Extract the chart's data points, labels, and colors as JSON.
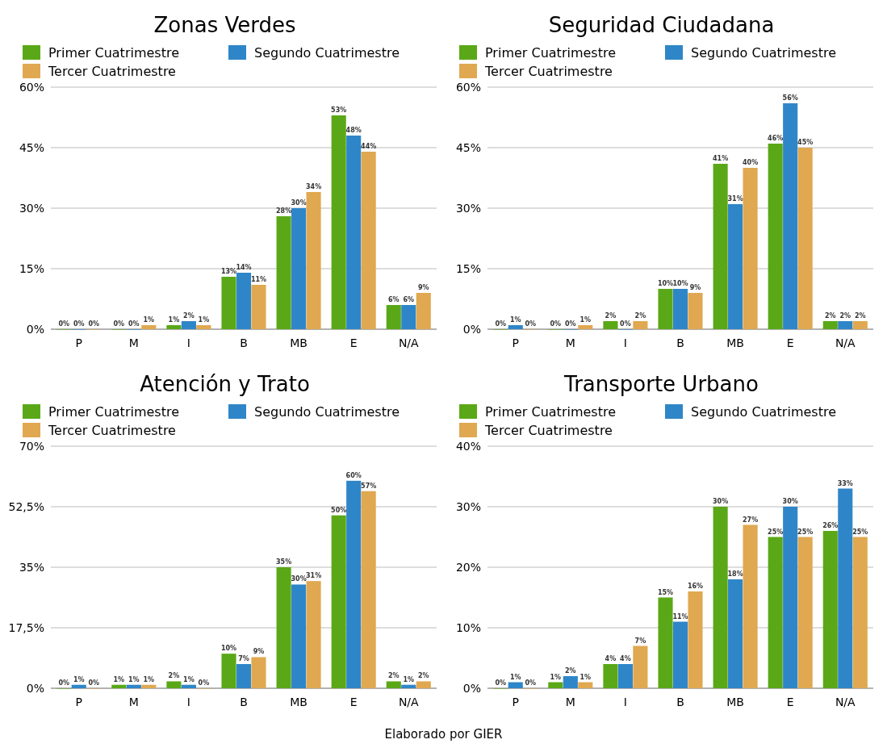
{
  "chart_data": [
    {
      "type": "bar",
      "title": "Zonas Verdes",
      "categories": [
        "P",
        "M",
        "I",
        "B",
        "MB",
        "E",
        "N/A"
      ],
      "ylim": [
        0,
        60
      ],
      "yticks": [
        {
          "value": 0,
          "label": "0%"
        },
        {
          "value": 15,
          "label": "15%"
        },
        {
          "value": 30,
          "label": "30%"
        },
        {
          "value": 45,
          "label": "45%"
        },
        {
          "value": 60,
          "label": "60%"
        }
      ],
      "grid": "y",
      "legend": "top",
      "series": [
        {
          "name": "Primer Cuatrimestre",
          "color": "#5aa817",
          "values": [
            0,
            0,
            1,
            13,
            28,
            53,
            6
          ],
          "value_labels": [
            "0%",
            "0%",
            "1%",
            "13%",
            "28%",
            "53%",
            "6%"
          ]
        },
        {
          "name": "Segundo Cuatrimestre",
          "color": "#2e86c8",
          "values": [
            0,
            0,
            2,
            14,
            30,
            48,
            6
          ],
          "value_labels": [
            "0%",
            "0%",
            "2%",
            "14%",
            "30%",
            "48%",
            "6%"
          ]
        },
        {
          "name": "Tercer Cuatrimestre",
          "color": "#e0a850",
          "values": [
            0,
            1,
            1,
            11,
            34,
            44,
            9
          ],
          "value_labels": [
            "0%",
            "1%",
            "1%",
            "11%",
            "34%",
            "44%",
            "9%"
          ]
        }
      ]
    },
    {
      "type": "bar",
      "title": "Seguridad Ciudadana",
      "categories": [
        "P",
        "M",
        "I",
        "B",
        "MB",
        "E",
        "N/A"
      ],
      "ylim": [
        0,
        60
      ],
      "yticks": [
        {
          "value": 0,
          "label": "0%"
        },
        {
          "value": 15,
          "label": "15%"
        },
        {
          "value": 30,
          "label": "30%"
        },
        {
          "value": 45,
          "label": "45%"
        },
        {
          "value": 60,
          "label": "60%"
        }
      ],
      "grid": "y",
      "legend": "top",
      "series": [
        {
          "name": "Primer Cuatrimestre",
          "color": "#5aa817",
          "values": [
            0,
            0,
            2,
            10,
            41,
            46,
            2
          ],
          "value_labels": [
            "0%",
            "0%",
            "2%",
            "10%",
            "41%",
            "46%",
            "2%"
          ]
        },
        {
          "name": "Segundo Cuatrimestre",
          "color": "#2e86c8",
          "values": [
            1,
            0,
            0,
            10,
            31,
            56,
            2
          ],
          "value_labels": [
            "1%",
            "0%",
            "0%",
            "10%",
            "31%",
            "56%",
            "2%"
          ]
        },
        {
          "name": "Tercer Cuatrimestre",
          "color": "#e0a850",
          "values": [
            0,
            1,
            2,
            9,
            40,
            45,
            2
          ],
          "value_labels": [
            "0%",
            "1%",
            "2%",
            "9%",
            "40%",
            "45%",
            "2%"
          ]
        }
      ]
    },
    {
      "type": "bar",
      "title": "Atención y Trato",
      "categories": [
        "P",
        "M",
        "I",
        "B",
        "MB",
        "E",
        "N/A"
      ],
      "ylim": [
        0,
        70
      ],
      "yticks": [
        {
          "value": 0,
          "label": "0%"
        },
        {
          "value": 17.5,
          "label": "17,5%"
        },
        {
          "value": 35,
          "label": "35%"
        },
        {
          "value": 52.5,
          "label": "52,5%"
        },
        {
          "value": 70,
          "label": "70%"
        }
      ],
      "grid": "y",
      "legend": "top",
      "series": [
        {
          "name": "Primer Cuatrimestre",
          "color": "#5aa817",
          "values": [
            0,
            1,
            2,
            10,
            35,
            50,
            2
          ],
          "value_labels": [
            "0%",
            "1%",
            "2%",
            "10%",
            "35%",
            "50%",
            "2%"
          ]
        },
        {
          "name": "Segundo Cuatrimestre",
          "color": "#2e86c8",
          "values": [
            1,
            1,
            1,
            7,
            30,
            60,
            1
          ],
          "value_labels": [
            "1%",
            "1%",
            "1%",
            "7%",
            "30%",
            "60%",
            "1%"
          ]
        },
        {
          "name": "Tercer Cuatrimestre",
          "color": "#e0a850",
          "values": [
            0,
            1,
            0,
            9,
            31,
            57,
            2
          ],
          "value_labels": [
            "0%",
            "1%",
            "0%",
            "9%",
            "31%",
            "57%",
            "2%"
          ]
        }
      ]
    },
    {
      "type": "bar",
      "title": "Transporte Urbano",
      "categories": [
        "P",
        "M",
        "I",
        "B",
        "MB",
        "E",
        "N/A"
      ],
      "ylim": [
        0,
        40
      ],
      "yticks": [
        {
          "value": 0,
          "label": "0%"
        },
        {
          "value": 10,
          "label": "10%"
        },
        {
          "value": 20,
          "label": "20%"
        },
        {
          "value": 30,
          "label": "30%"
        },
        {
          "value": 40,
          "label": "40%"
        }
      ],
      "grid": "y",
      "legend": "top",
      "annotations": [
        "Elaborado por GIER"
      ],
      "series": [
        {
          "name": "Primer Cuatrimestre",
          "color": "#5aa817",
          "values": [
            0,
            1,
            4,
            15,
            30,
            25,
            26
          ],
          "value_labels": [
            "0%",
            "1%",
            "4%",
            "15%",
            "30%",
            "25%",
            "26%"
          ]
        },
        {
          "name": "Segundo Cuatrimestre",
          "color": "#2e86c8",
          "values": [
            1,
            2,
            4,
            11,
            18,
            30,
            33
          ],
          "value_labels": [
            "1%",
            "2%",
            "4%",
            "11%",
            "18%",
            "30%",
            "33%"
          ]
        },
        {
          "name": "Tercer Cuatrimestre",
          "color": "#e0a850",
          "values": [
            0,
            1,
            7,
            16,
            27,
            25,
            25
          ],
          "value_labels": [
            "0%",
            "1%",
            "7%",
            "16%",
            "27%",
            "25%",
            "25%"
          ]
        }
      ]
    }
  ]
}
